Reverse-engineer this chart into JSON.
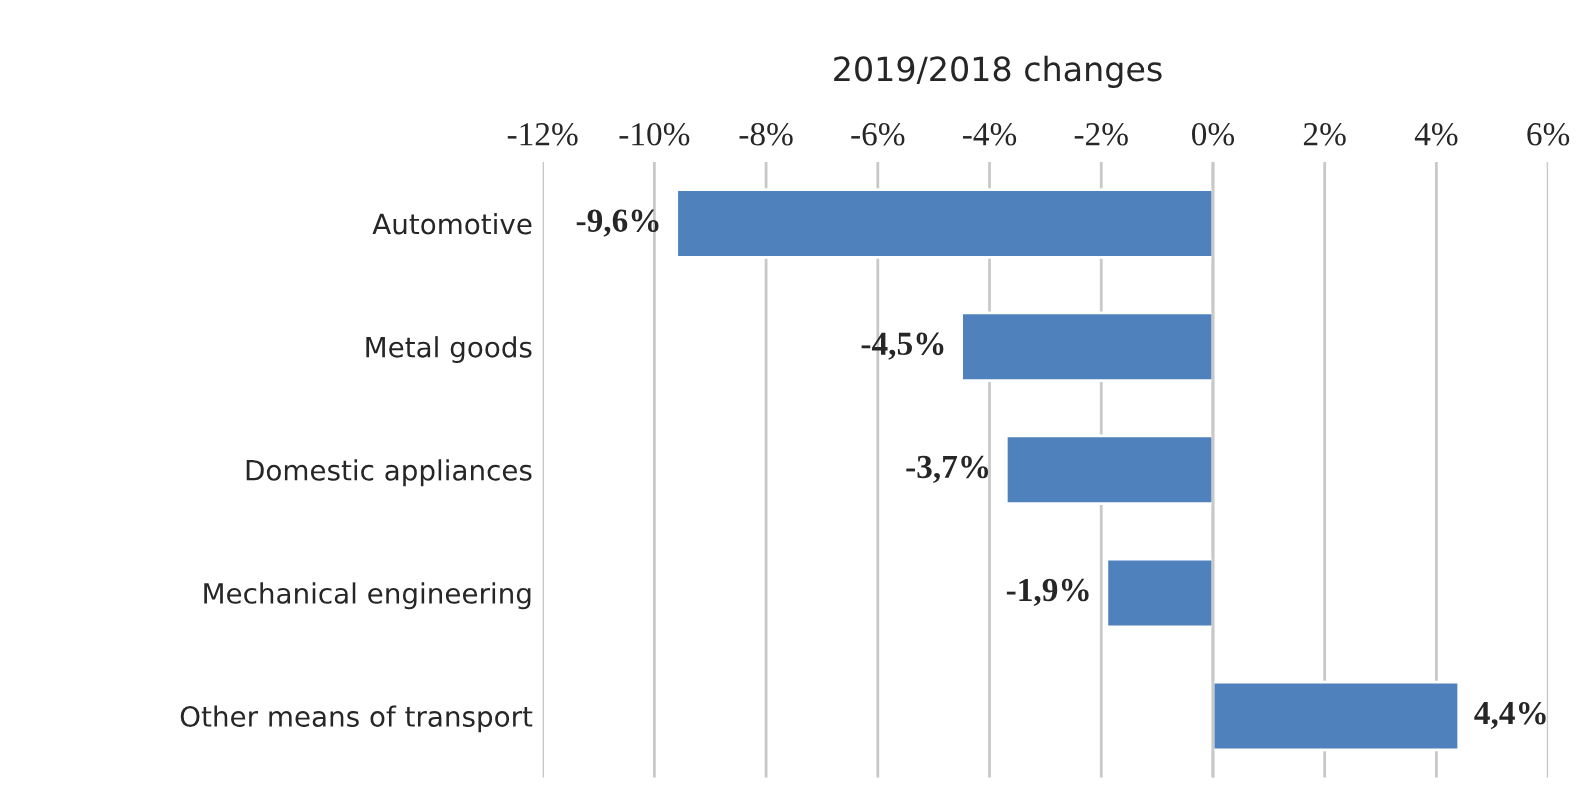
{
  "chart_data": {
    "type": "bar",
    "orientation": "horizontal",
    "title": "2019/2018 changes",
    "categories": [
      "Automotive",
      "Metal goods",
      "Domestic appliances",
      "Mechanical engineering",
      "Other means of transport"
    ],
    "values": [
      -9.6,
      -4.5,
      -3.7,
      -1.9,
      4.4
    ],
    "value_labels": [
      "-9,6%",
      "-4,5%",
      "-3,7%",
      "-1,9%",
      "4,4%"
    ],
    "color": "#4f81bd",
    "xlim": [
      -12,
      6
    ],
    "xticks": [
      {
        "value": -12,
        "label": "-12%"
      },
      {
        "value": -10,
        "label": "-10%"
      },
      {
        "value": -8,
        "label": "-8%"
      },
      {
        "value": -6,
        "label": "-6%"
      },
      {
        "value": -4,
        "label": "-4%"
      },
      {
        "value": -2,
        "label": "-2%"
      },
      {
        "value": 0,
        "label": "0%"
      },
      {
        "value": 2,
        "label": "2%"
      },
      {
        "value": 4,
        "label": "4%"
      },
      {
        "value": 6,
        "label": "6%"
      }
    ],
    "grid": "x"
  }
}
